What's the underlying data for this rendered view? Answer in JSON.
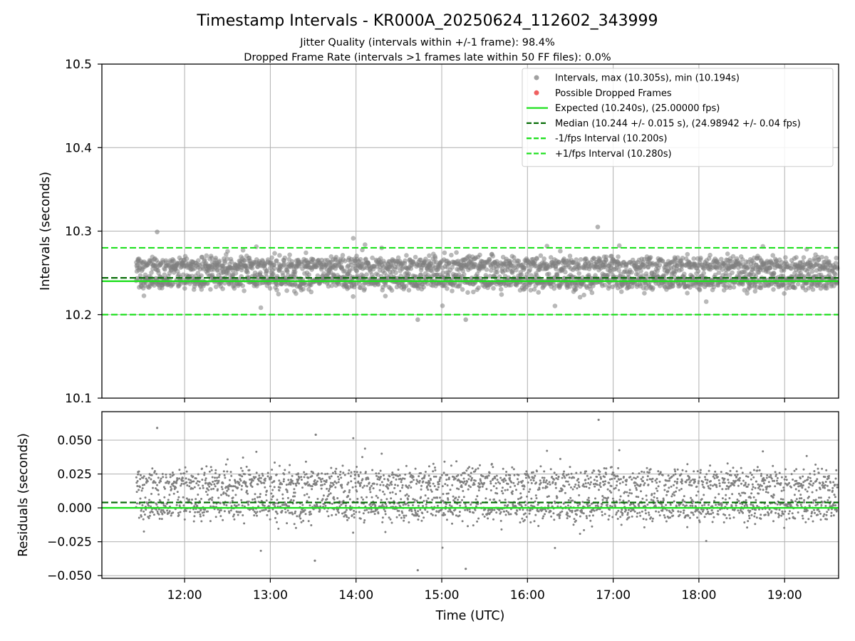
{
  "figure": {
    "title": "Timestamp Intervals - KR000A_20250624_112602_343999",
    "subtitle_1": "Jitter Quality (intervals within +/-1 frame): 98.4%",
    "subtitle_2": "Dropped Frame Rate (intervals >1 frames late within 50 FF files): 0.0%"
  },
  "colors": {
    "points": "#808080",
    "dropped": "#e8262b",
    "expected": "#1fe01f",
    "median": "#0a6e0a",
    "interval": "#1fe01f",
    "grid": "#b0b0b0"
  },
  "chart_data": [
    {
      "type": "scatter",
      "ylabel": "Intervals (seconds)",
      "ylim": [
        10.1,
        10.5
      ],
      "yticks": [
        "10.1",
        "10.2",
        "10.3",
        "10.4",
        "10.5"
      ],
      "ytick_values": [
        10.1,
        10.2,
        10.3,
        10.4,
        10.5
      ],
      "xlim_hours": [
        11.035,
        19.63
      ],
      "grid": true,
      "legend_position": "upper right",
      "legend": [
        {
          "label": "Intervals, max (10.305s), min (10.194s)",
          "kind": "point",
          "color": "#a0a0a0"
        },
        {
          "label": "Possible Dropped Frames",
          "kind": "point",
          "color": "#f06060"
        },
        {
          "label": "Expected (10.240s), (25.00000 fps)",
          "kind": "solid",
          "color": "#1fe01f"
        },
        {
          "label": "Median (10.244 +/- 0.015 s), (24.98942 +/- 0.04 fps)",
          "kind": "dashed",
          "color": "#0a6e0a"
        },
        {
          "label": "-1/fps Interval (10.200s)",
          "kind": "dashed",
          "color": "#1fe01f"
        },
        {
          "label": "+1/fps Interval (10.280s)",
          "kind": "dashed",
          "color": "#1fe01f"
        }
      ],
      "reference_lines": {
        "expected": 10.24,
        "median": 10.244,
        "minus_interval": 10.2,
        "plus_interval": 10.28
      },
      "series": {
        "start_time": "11:26",
        "end_time": "19:37",
        "count": 2800,
        "max": 10.305,
        "min": 10.194,
        "levels": [
          10.24,
          10.26
        ],
        "spread": 0.015
      }
    },
    {
      "type": "scatter",
      "xlabel": "Time (UTC)",
      "ylabel": "Residuals (seconds)",
      "ylim": [
        -0.052,
        0.071
      ],
      "yticks": [
        "−0.050",
        "−0.025",
        "0.000",
        "0.025",
        "0.050"
      ],
      "ytick_values": [
        -0.05,
        -0.025,
        0.0,
        0.025,
        0.05
      ],
      "xticks": [
        "12:00",
        "13:00",
        "14:00",
        "15:00",
        "16:00",
        "17:00",
        "18:00",
        "19:00"
      ],
      "xtick_values": [
        12,
        13,
        14,
        15,
        16,
        17,
        18,
        19
      ],
      "xlim_hours": [
        11.035,
        19.63
      ],
      "grid": true,
      "reference_lines": {
        "zero": 0.0,
        "median": 0.004
      },
      "series": {
        "max": 0.065,
        "min": -0.046,
        "levels": [
          0.0,
          0.02
        ],
        "spread": 0.015
      }
    }
  ]
}
